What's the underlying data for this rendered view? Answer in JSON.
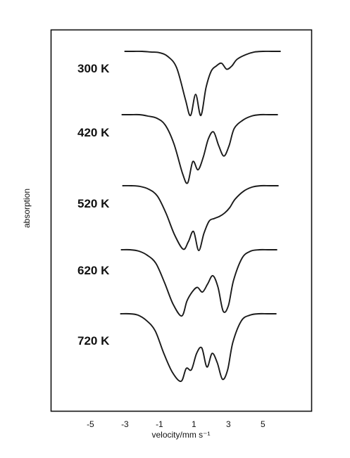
{
  "chart_data": {
    "type": "line",
    "title": "",
    "xlabel": "velocity/mm s⁻¹",
    "ylabel": "absorption",
    "x_ticks": [
      "-5",
      "-3",
      "-1",
      "1",
      "3",
      "5"
    ],
    "xlim": [
      -7.3,
      7.8
    ],
    "grid": false,
    "legend": "none",
    "series": [
      {
        "name": "300 K",
        "x": [
          -3.0,
          -2.5,
          -2.0,
          -1.5,
          -1.0,
          -0.5,
          0.0,
          0.5,
          0.8,
          1.1,
          1.4,
          1.7,
          2.0,
          2.3,
          2.6,
          2.9,
          3.2,
          3.5,
          4.0,
          4.5,
          5.0,
          5.5,
          6.0
        ],
        "y": [
          0.0,
          0.0,
          0.0,
          0.01,
          0.02,
          0.08,
          0.25,
          0.72,
          0.97,
          0.65,
          0.97,
          0.55,
          0.3,
          0.22,
          0.18,
          0.27,
          0.22,
          0.12,
          0.05,
          0.01,
          0.0,
          0.0,
          0.0
        ]
      },
      {
        "name": "420 K",
        "x": [
          -3.0,
          -2.5,
          -2.0,
          -1.5,
          -1.0,
          -0.5,
          0.0,
          0.5,
          0.8,
          1.1,
          1.4,
          1.7,
          2.0,
          2.3,
          2.6,
          2.9,
          3.2,
          3.5,
          4.0,
          4.5,
          5.0,
          5.5,
          6.0
        ],
        "y": [
          0.0,
          0.0,
          0.0,
          0.02,
          0.05,
          0.15,
          0.42,
          0.85,
          0.99,
          0.68,
          0.8,
          0.62,
          0.35,
          0.25,
          0.45,
          0.6,
          0.45,
          0.2,
          0.08,
          0.02,
          0.0,
          0.0,
          0.0
        ]
      },
      {
        "name": "520 K",
        "x": [
          -3.0,
          -2.5,
          -2.0,
          -1.5,
          -1.0,
          -0.5,
          0.0,
          0.5,
          0.8,
          1.1,
          1.4,
          1.7,
          2.0,
          2.3,
          2.6,
          2.9,
          3.2,
          3.5,
          4.0,
          4.5,
          5.0,
          5.5,
          6.0
        ],
        "y": [
          0.0,
          0.0,
          0.01,
          0.05,
          0.15,
          0.4,
          0.72,
          0.93,
          0.82,
          0.67,
          0.95,
          0.7,
          0.52,
          0.48,
          0.45,
          0.4,
          0.32,
          0.2,
          0.08,
          0.02,
          0.0,
          0.0,
          0.0
        ]
      },
      {
        "name": "620 K",
        "x": [
          -3.0,
          -2.5,
          -2.0,
          -1.5,
          -1.0,
          -0.5,
          0.0,
          0.5,
          0.8,
          1.1,
          1.4,
          1.7,
          2.0,
          2.3,
          2.6,
          2.9,
          3.2,
          3.5,
          4.0,
          4.5,
          5.0,
          5.5,
          6.0
        ],
        "y": [
          0.0,
          0.0,
          0.02,
          0.08,
          0.2,
          0.48,
          0.8,
          0.97,
          0.75,
          0.62,
          0.55,
          0.62,
          0.5,
          0.38,
          0.55,
          0.9,
          0.82,
          0.45,
          0.12,
          0.02,
          0.0,
          0.0,
          0.0
        ]
      },
      {
        "name": "720 K",
        "x": [
          -3.0,
          -2.5,
          -2.0,
          -1.5,
          -1.0,
          -0.5,
          0.0,
          0.5,
          0.8,
          1.1,
          1.4,
          1.7,
          2.0,
          2.3,
          2.6,
          2.9,
          3.2,
          3.5,
          4.0,
          4.5,
          5.0,
          5.5,
          6.0
        ],
        "y": [
          0.0,
          0.0,
          0.02,
          0.1,
          0.25,
          0.58,
          0.86,
          0.99,
          0.8,
          0.82,
          0.58,
          0.5,
          0.78,
          0.58,
          0.72,
          0.96,
          0.82,
          0.42,
          0.1,
          0.02,
          0.0,
          0.0,
          0.0
        ]
      }
    ]
  }
}
